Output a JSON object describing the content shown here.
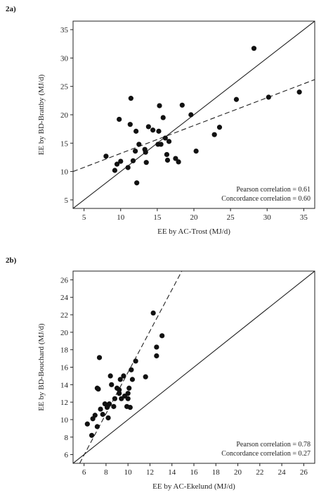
{
  "chart_data": [
    {
      "panel": "2a)",
      "type": "scatter",
      "xlabel": "EE by AC-Trost (MJ/d)",
      "ylabel": "EE by BD-Brattby (MJ/d)",
      "xlim": [
        3.5,
        36.5
      ],
      "ylim": [
        3.5,
        36.5
      ],
      "xticks": [
        5,
        10,
        15,
        20,
        25,
        30,
        35
      ],
      "yticks": [
        5,
        10,
        15,
        20,
        25,
        30,
        35
      ],
      "annotations": [
        "Pearson correlation = 0.61",
        "Concordance correlation = 0.60"
      ],
      "lines": [
        {
          "style": "solid",
          "role": "identity",
          "x1": 3.5,
          "y1": 3.5,
          "x2": 36.5,
          "y2": 36.5
        },
        {
          "style": "dashed",
          "role": "regression",
          "x1": 3.5,
          "y1": 10.0,
          "x2": 36.5,
          "y2": 26.2
        }
      ],
      "points": [
        [
          8.0,
          12.7
        ],
        [
          9.2,
          10.2
        ],
        [
          9.5,
          11.3
        ],
        [
          9.8,
          19.2
        ],
        [
          10.0,
          11.8
        ],
        [
          11.0,
          10.7
        ],
        [
          11.3,
          18.3
        ],
        [
          11.4,
          22.9
        ],
        [
          11.7,
          11.9
        ],
        [
          12.0,
          13.6
        ],
        [
          12.1,
          17.1
        ],
        [
          12.2,
          8.0
        ],
        [
          12.5,
          14.8
        ],
        [
          13.3,
          13.9
        ],
        [
          13.4,
          13.4
        ],
        [
          13.5,
          11.6
        ],
        [
          13.8,
          17.9
        ],
        [
          14.4,
          17.3
        ],
        [
          15.1,
          14.8
        ],
        [
          15.2,
          17.1
        ],
        [
          15.3,
          21.6
        ],
        [
          15.5,
          14.8
        ],
        [
          15.8,
          19.5
        ],
        [
          16.1,
          15.9
        ],
        [
          16.3,
          13.0
        ],
        [
          16.4,
          12.0
        ],
        [
          16.6,
          15.3
        ],
        [
          17.5,
          12.3
        ],
        [
          17.9,
          11.7
        ],
        [
          18.4,
          21.7
        ],
        [
          19.6,
          20.0
        ],
        [
          20.3,
          13.6
        ],
        [
          22.8,
          16.5
        ],
        [
          23.5,
          17.8
        ],
        [
          25.8,
          22.7
        ],
        [
          28.2,
          31.7
        ],
        [
          30.2,
          23.1
        ],
        [
          34.4,
          24.0
        ]
      ]
    },
    {
      "panel": "2b)",
      "type": "scatter",
      "xlabel": "EE by AC-Ekelund (MJ/d)",
      "ylabel": "EE by BD-Bouchard (MJ/d)",
      "xlim": [
        5,
        27
      ],
      "ylim": [
        5,
        27
      ],
      "xticks": [
        6,
        8,
        10,
        12,
        14,
        16,
        18,
        20,
        22,
        24,
        26
      ],
      "yticks": [
        6,
        8,
        10,
        12,
        14,
        16,
        18,
        20,
        22,
        24,
        26
      ],
      "annotations": [
        "Pearson correlation = 0.78",
        "Concordance correlation = 0.27"
      ],
      "lines": [
        {
          "style": "solid",
          "role": "identity",
          "x1": 5,
          "y1": 5,
          "x2": 27,
          "y2": 27
        },
        {
          "style": "dashed",
          "role": "regression",
          "x1": 5.6,
          "y1": 5.0,
          "x2": 14.9,
          "y2": 27.0
        }
      ],
      "points": [
        [
          6.3,
          9.5
        ],
        [
          6.7,
          8.2
        ],
        [
          6.8,
          10.1
        ],
        [
          7.0,
          10.5
        ],
        [
          7.2,
          9.2
        ],
        [
          7.2,
          13.6
        ],
        [
          7.3,
          13.5
        ],
        [
          7.4,
          17.1
        ],
        [
          7.5,
          11.2
        ],
        [
          7.7,
          10.6
        ],
        [
          7.9,
          11.8
        ],
        [
          8.1,
          11.4
        ],
        [
          8.2,
          10.2
        ],
        [
          8.3,
          11.8
        ],
        [
          8.4,
          15.0
        ],
        [
          8.5,
          14.0
        ],
        [
          8.7,
          11.5
        ],
        [
          8.8,
          12.4
        ],
        [
          9.0,
          13.6
        ],
        [
          9.2,
          13.0
        ],
        [
          9.2,
          13.4
        ],
        [
          9.3,
          14.6
        ],
        [
          9.4,
          12.4
        ],
        [
          9.6,
          15.0
        ],
        [
          9.7,
          12.7
        ],
        [
          9.9,
          11.5
        ],
        [
          10.0,
          13.0
        ],
        [
          10.0,
          12.4
        ],
        [
          10.1,
          13.6
        ],
        [
          10.2,
          11.4
        ],
        [
          10.3,
          15.7
        ],
        [
          10.4,
          14.6
        ],
        [
          10.7,
          16.7
        ],
        [
          11.6,
          14.9
        ],
        [
          12.3,
          22.2
        ],
        [
          12.6,
          18.3
        ],
        [
          12.6,
          17.3
        ],
        [
          13.1,
          19.6
        ]
      ]
    }
  ]
}
